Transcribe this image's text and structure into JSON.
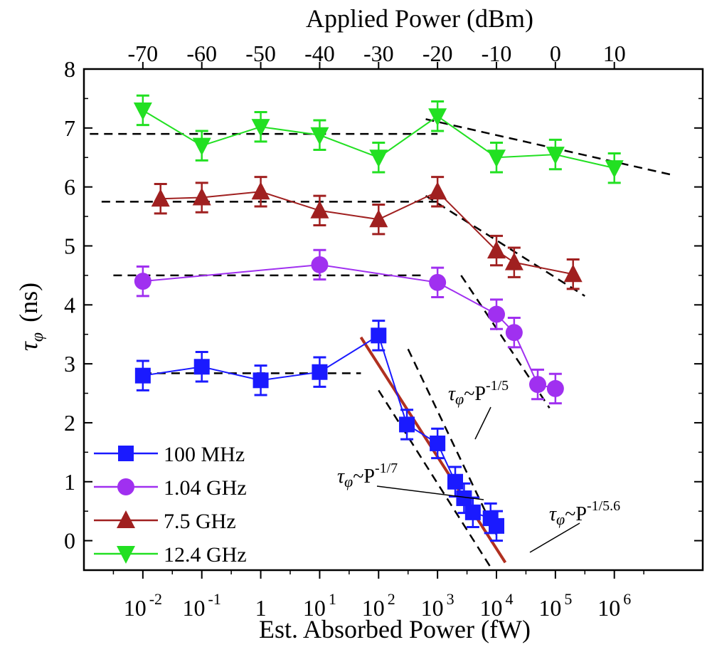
{
  "chart_data": {
    "type": "scatter",
    "top_axis": {
      "title": "Applied Power (dBm)",
      "ticks": [
        {
          "label": "-70",
          "x_log10": -2
        },
        {
          "label": "-60",
          "x_log10": -1
        },
        {
          "label": "-50",
          "x_log10": 0
        },
        {
          "label": "-40",
          "x_log10": 1
        },
        {
          "label": "-30",
          "x_log10": 2
        },
        {
          "label": "-20",
          "x_log10": 3
        },
        {
          "label": "-10",
          "x_log10": 4
        },
        {
          "label": "0",
          "x_log10": 5
        },
        {
          "label": "10",
          "x_log10": 6
        }
      ]
    },
    "x_axis": {
      "title": "Est. Absorbed Power (fW)",
      "scale": "log",
      "range_log10": [
        -3,
        7.5
      ],
      "ticks": [
        {
          "base": "10",
          "exp": "-2",
          "x_log10": -2
        },
        {
          "base": "10",
          "exp": "-1",
          "x_log10": -1
        },
        {
          "base": "1",
          "exp": "",
          "x_log10": 0
        },
        {
          "base": "10",
          "exp": "1",
          "x_log10": 1
        },
        {
          "base": "10",
          "exp": "2",
          "x_log10": 2
        },
        {
          "base": "10",
          "exp": "3",
          "x_log10": 3
        },
        {
          "base": "10",
          "exp": "4",
          "x_log10": 4
        },
        {
          "base": "10",
          "exp": "5",
          "x_log10": 5
        },
        {
          "base": "10",
          "exp": "6",
          "x_log10": 6
        }
      ]
    },
    "y_axis": {
      "title_symbol": "τ",
      "title_sub": "φ",
      "title_unit": "(ns)",
      "range": [
        -0.5,
        8
      ],
      "ticks": [
        "0",
        "1",
        "2",
        "3",
        "4",
        "5",
        "6",
        "7",
        "8"
      ]
    },
    "series": [
      {
        "name": "100 MHz",
        "color": "#1a1aff",
        "marker": "square",
        "points": [
          {
            "x": -2,
            "y": 2.8,
            "err": 0.25
          },
          {
            "x": -1,
            "y": 2.95,
            "err": 0.25
          },
          {
            "x": 0,
            "y": 2.72,
            "err": 0.25
          },
          {
            "x": 1,
            "y": 2.86,
            "err": 0.25
          },
          {
            "x": 2,
            "y": 3.48,
            "err": 0.25
          },
          {
            "x": 2.48,
            "y": 1.97,
            "err": 0.25
          },
          {
            "x": 3,
            "y": 1.65,
            "err": 0.25
          },
          {
            "x": 3.3,
            "y": 1.0,
            "err": 0.25
          },
          {
            "x": 3.45,
            "y": 0.72,
            "err": 0.25
          },
          {
            "x": 3.6,
            "y": 0.48,
            "err": 0.25
          },
          {
            "x": 3.9,
            "y": 0.38,
            "err": 0.25
          },
          {
            "x": 4.0,
            "y": 0.25,
            "err": 0.25
          }
        ]
      },
      {
        "name": "1.04 GHz",
        "color": "#a030f0",
        "marker": "circle",
        "points": [
          {
            "x": -2,
            "y": 4.4,
            "err": 0.25
          },
          {
            "x": 1,
            "y": 4.68,
            "err": 0.25
          },
          {
            "x": 3,
            "y": 4.38,
            "err": 0.25
          },
          {
            "x": 4,
            "y": 3.84,
            "err": 0.25
          },
          {
            "x": 4.3,
            "y": 3.53,
            "err": 0.25
          },
          {
            "x": 4.7,
            "y": 2.65,
            "err": 0.25
          },
          {
            "x": 5,
            "y": 2.58,
            "err": 0.25
          }
        ]
      },
      {
        "name": "7.5 GHz",
        "color": "#a02020",
        "marker": "triangle-up",
        "points": [
          {
            "x": -1.7,
            "y": 5.8,
            "err": 0.25
          },
          {
            "x": -1,
            "y": 5.82,
            "err": 0.25
          },
          {
            "x": 0,
            "y": 5.92,
            "err": 0.25
          },
          {
            "x": 1,
            "y": 5.6,
            "err": 0.25
          },
          {
            "x": 2,
            "y": 5.45,
            "err": 0.25
          },
          {
            "x": 3,
            "y": 5.92,
            "err": 0.25
          },
          {
            "x": 4,
            "y": 4.92,
            "err": 0.25
          },
          {
            "x": 4.3,
            "y": 4.72,
            "err": 0.25
          },
          {
            "x": 5.3,
            "y": 4.52,
            "err": 0.25
          }
        ]
      },
      {
        "name": "12.4 GHz",
        "color": "#22e022",
        "marker": "triangle-down",
        "points": [
          {
            "x": -2,
            "y": 7.3,
            "err": 0.25
          },
          {
            "x": -1,
            "y": 6.7,
            "err": 0.25
          },
          {
            "x": 0,
            "y": 7.02,
            "err": 0.25
          },
          {
            "x": 1,
            "y": 6.88,
            "err": 0.25
          },
          {
            "x": 2,
            "y": 6.5,
            "err": 0.25
          },
          {
            "x": 3,
            "y": 7.2,
            "err": 0.25
          },
          {
            "x": 4,
            "y": 6.5,
            "err": 0.25
          },
          {
            "x": 5,
            "y": 6.55,
            "err": 0.25
          },
          {
            "x": 6,
            "y": 6.32,
            "err": 0.25
          }
        ]
      }
    ],
    "guide_lines": [
      {
        "name": "green-plateau",
        "style": "dashed",
        "x1": -2.9,
        "y1": 6.9,
        "x2": 3.0,
        "y2": 6.9
      },
      {
        "name": "green-slope",
        "style": "dashed",
        "x1": 2.8,
        "y1": 7.15,
        "x2": 7.0,
        "y2": 6.2
      },
      {
        "name": "red-plateau",
        "style": "dashed",
        "x1": -2.7,
        "y1": 5.75,
        "x2": 3.0,
        "y2": 5.75
      },
      {
        "name": "red-slope",
        "style": "dashed",
        "x1": 2.8,
        "y1": 5.85,
        "x2": 5.5,
        "y2": 4.15
      },
      {
        "name": "purple-plateau",
        "style": "dashed",
        "x1": -2.5,
        "y1": 4.5,
        "x2": 2.8,
        "y2": 4.5
      },
      {
        "name": "purple-slope",
        "style": "dashed",
        "x1": 3.4,
        "y1": 4.5,
        "x2": 4.9,
        "y2": 2.25
      },
      {
        "name": "blue-plateau",
        "style": "dashed",
        "x1": -2.0,
        "y1": 2.84,
        "x2": 1.7,
        "y2": 2.84
      },
      {
        "name": "slope-fifth",
        "style": "dashed",
        "x1": 2.5,
        "y1": 3.25,
        "x2": 4.0,
        "y2": 0.1
      },
      {
        "name": "slope-seventh",
        "style": "dashed",
        "x1": 2.0,
        "y1": 2.55,
        "x2": 3.9,
        "y2": -0.45
      },
      {
        "name": "fit-5.6",
        "style": "solid",
        "color": "#b03020",
        "x1": 1.7,
        "y1": 3.45,
        "x2": 4.15,
        "y2": -0.37
      }
    ],
    "annotations": [
      {
        "id": "fifth",
        "sym": "τ",
        "sub": "φ",
        "mid": "~P",
        "exp": "-1/5"
      },
      {
        "id": "seventh",
        "sym": "τ",
        "sub": "φ",
        "mid": "~P",
        "exp": "-1/7"
      },
      {
        "id": "five-six",
        "sym": "τ",
        "sub": "φ",
        "mid": "~P",
        "exp": "-1/5.6"
      }
    ],
    "legend": {
      "position": "bottom-left"
    }
  }
}
